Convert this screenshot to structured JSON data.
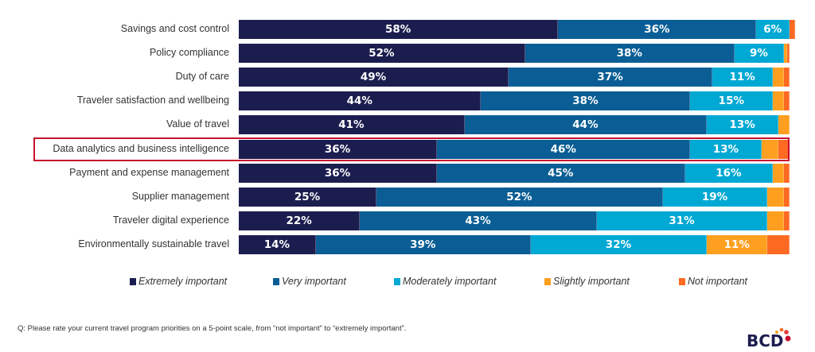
{
  "chart_data": {
    "type": "bar",
    "orientation": "horizontal-stacked-100",
    "categories": [
      "Savings and cost control",
      "Policy compliance",
      "Duty of care",
      "Traveler satisfaction and wellbeing",
      "Value of travel",
      "Data analytics and business intelligence",
      "Payment and expense management",
      "Supplier management",
      "Traveler digital experience",
      "Environmentally sustainable travel"
    ],
    "highlighted_category": "Data analytics and business intelligence",
    "series": [
      {
        "name": "Extremely important",
        "color": "#1c1d4f",
        "values": [
          58,
          52,
          49,
          44,
          41,
          36,
          36,
          25,
          22,
          14
        ],
        "labels": [
          "58%",
          "52%",
          "49%",
          "44%",
          "41%",
          "36%",
          "36%",
          "25%",
          "22%",
          "14%"
        ]
      },
      {
        "name": "Very important",
        "color": "#0a5e95",
        "values": [
          36,
          38,
          37,
          38,
          44,
          46,
          45,
          52,
          43,
          39
        ],
        "labels": [
          "36%",
          "38%",
          "37%",
          "38%",
          "44%",
          "46%",
          "45%",
          "52%",
          "43%",
          "39%"
        ]
      },
      {
        "name": "Moderately important",
        "color": "#00a8d4",
        "values": [
          6,
          9,
          11,
          15,
          13,
          13,
          16,
          19,
          31,
          32
        ],
        "labels": [
          "6%",
          "9%",
          "11%",
          "15%",
          "13%",
          "13%",
          "16%",
          "19%",
          "31%",
          "32%"
        ]
      },
      {
        "name": "Slightly important",
        "color": "#ff9f1f",
        "values": [
          0,
          0.5,
          2,
          2,
          2,
          3,
          2,
          3,
          3,
          11
        ],
        "labels": [
          "",
          "",
          "",
          "",
          "",
          "",
          "",
          "",
          "",
          "11%"
        ]
      },
      {
        "name": "Not important",
        "color": "#ff6a23",
        "values": [
          1,
          0.5,
          1,
          1,
          0,
          2,
          1,
          1,
          1,
          4
        ],
        "labels": [
          "",
          "",
          "",
          "",
          "",
          "",
          "",
          "",
          "",
          ""
        ]
      }
    ],
    "xlim": [
      0,
      100
    ],
    "grid": false,
    "legend_placement": "bottom",
    "highlight_color": "#c8102e"
  },
  "footnote": "Q: Please rate your current travel program priorities on a 5-point scale, from “not important” to “extremely important”.",
  "logo": "BCD"
}
